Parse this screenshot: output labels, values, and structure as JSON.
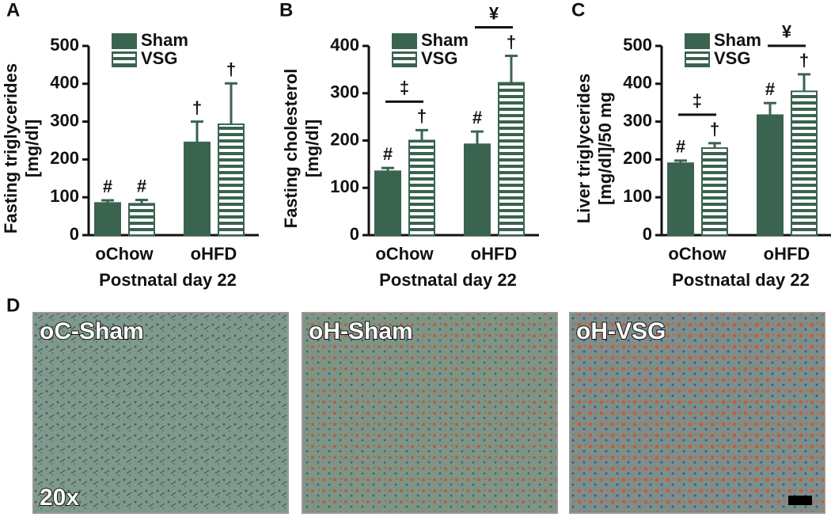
{
  "chart_data": [
    {
      "type": "bar",
      "panel": "A",
      "ylabel": [
        "Fasting triglycerides",
        "[mg/dl]"
      ],
      "xlabel": "Postnatal day 22",
      "categories": [
        "oChow",
        "oHFD"
      ],
      "series": [
        {
          "name": "Sham",
          "color": "#3a6350",
          "hatch": false,
          "values": [
            85,
            245
          ],
          "errors": [
            7,
            55
          ],
          "markers": [
            "#",
            "†"
          ]
        },
        {
          "name": "VSG",
          "color": "#3a6350",
          "hatch": true,
          "values": [
            83,
            293
          ],
          "errors": [
            10,
            108
          ],
          "markers": [
            "#",
            "†"
          ]
        }
      ],
      "ylim": [
        0,
        500
      ],
      "yticks": [
        0,
        100,
        200,
        300,
        400,
        500
      ]
    },
    {
      "type": "bar",
      "panel": "B",
      "ylabel": [
        "Fasting cholesterol",
        "[mg/dl]"
      ],
      "xlabel": "Postnatal day 22",
      "categories": [
        "oChow",
        "oHFD"
      ],
      "series": [
        {
          "name": "Sham",
          "color": "#3a6350",
          "hatch": false,
          "values": [
            135,
            192
          ],
          "errors": [
            7,
            27
          ],
          "markers": [
            "#",
            "#"
          ]
        },
        {
          "name": "VSG",
          "color": "#3a6350",
          "hatch": true,
          "values": [
            200,
            322
          ],
          "errors": [
            22,
            57
          ],
          "markers": [
            "†",
            "†"
          ]
        }
      ],
      "brackets": [
        "‡",
        "¥"
      ],
      "ylim": [
        0,
        400
      ],
      "yticks": [
        0,
        100,
        200,
        300,
        400
      ]
    },
    {
      "type": "bar",
      "panel": "C",
      "ylabel": [
        "Liver triglycerides",
        "[mg/dl]/50 mg"
      ],
      "xlabel": "Postnatal day 22",
      "categories": [
        "oChow",
        "oHFD"
      ],
      "series": [
        {
          "name": "Sham",
          "color": "#3a6350",
          "hatch": false,
          "values": [
            190,
            317
          ],
          "errors": [
            7,
            32
          ],
          "markers": [
            "#",
            "#"
          ]
        },
        {
          "name": "VSG",
          "color": "#3a6350",
          "hatch": true,
          "values": [
            230,
            380
          ],
          "errors": [
            13,
            45
          ],
          "markers": [
            "†",
            "†"
          ]
        }
      ],
      "brackets": [
        "‡",
        "¥"
      ],
      "ylim": [
        0,
        500
      ],
      "yticks": [
        0,
        100,
        200,
        300,
        400,
        500
      ]
    }
  ],
  "images": {
    "panel": "D",
    "labels": [
      "oC-Sham",
      "oH-Sham",
      "oH-VSG"
    ],
    "magnification": "20x"
  }
}
